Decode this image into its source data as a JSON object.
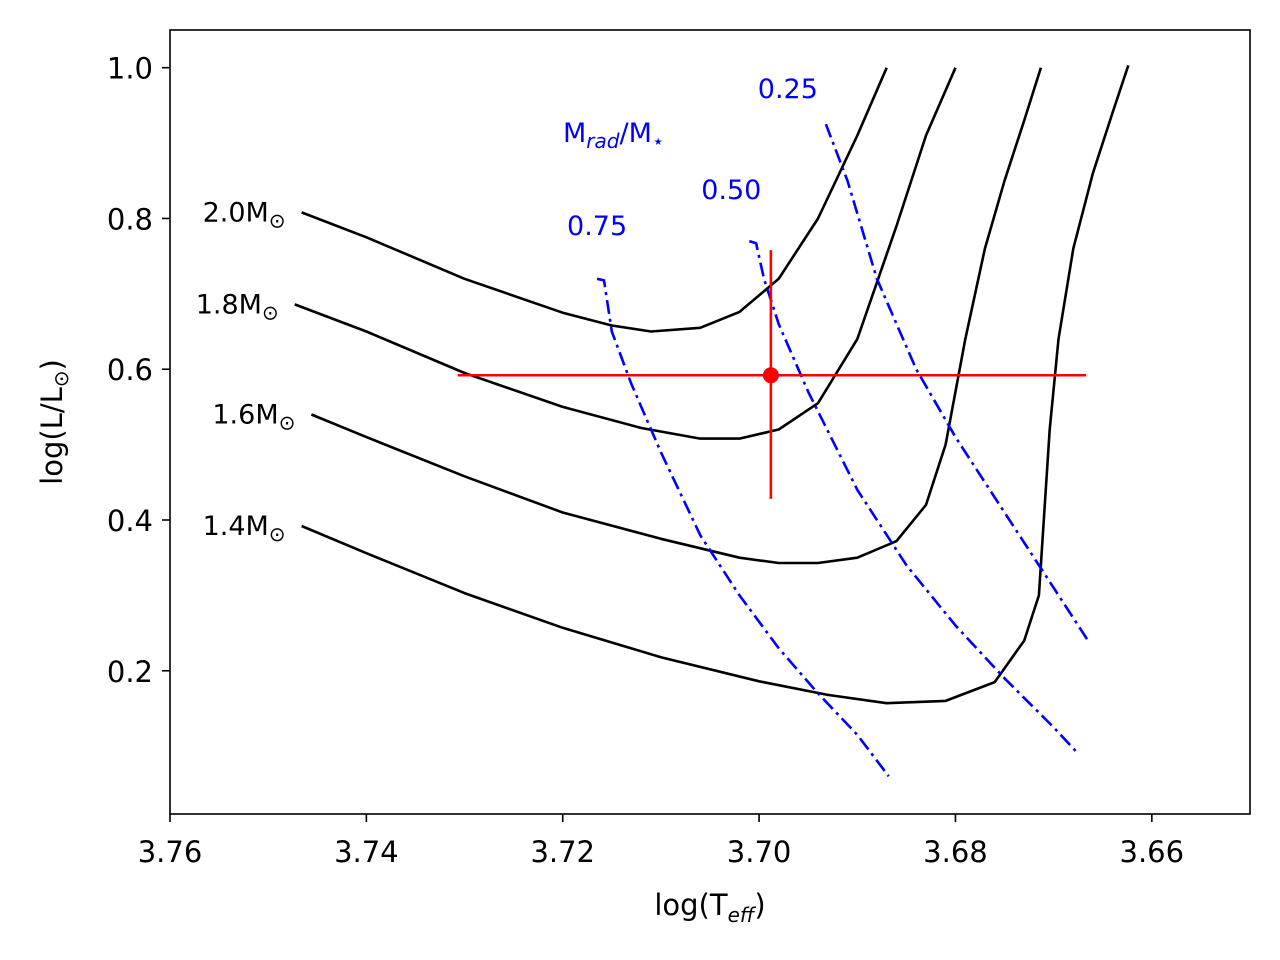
{
  "chart_data": {
    "type": "line",
    "title": "",
    "xlabel": "log(T",
    "xlabel_sub": "eff",
    "xlabel_close": ")",
    "ylabel": "log(L/L",
    "ylabel_sym": "⊙",
    "ylabel_close": ")",
    "xlim": [
      3.76,
      3.65
    ],
    "ylim": [
      0.01,
      1.05
    ],
    "x_ticks": [
      3.76,
      3.74,
      3.72,
      3.7,
      3.68,
      3.66
    ],
    "x_tick_labels": [
      "3.76",
      "3.74",
      "3.72",
      "3.70",
      "3.68",
      "3.66"
    ],
    "y_ticks": [
      0.2,
      0.4,
      0.6,
      0.8,
      1.0
    ],
    "y_tick_labels": [
      "0.2",
      "0.4",
      "0.6",
      "0.8",
      "1.0"
    ],
    "colors": {
      "tracks": "#000000",
      "isofrac": "#0000ff",
      "star": "#ff0000"
    },
    "tracks": [
      {
        "name": "2.0M",
        "label": "2.0M",
        "sun": "⊙",
        "x": [
          3.7466,
          3.74,
          3.73,
          3.72,
          3.715,
          3.711,
          3.706,
          3.702,
          3.698,
          3.694,
          3.69,
          3.687
        ],
        "y": [
          0.808,
          0.775,
          0.72,
          0.675,
          0.658,
          0.65,
          0.655,
          0.676,
          0.72,
          0.8,
          0.91,
          1.0
        ]
      },
      {
        "name": "1.8M",
        "label": "1.8M",
        "sun": "⊙",
        "x": [
          3.7473,
          3.74,
          3.73,
          3.72,
          3.712,
          3.706,
          3.702,
          3.698,
          3.694,
          3.69,
          3.686,
          3.683,
          3.68
        ],
        "y": [
          0.686,
          0.65,
          0.595,
          0.55,
          0.522,
          0.508,
          0.508,
          0.52,
          0.555,
          0.64,
          0.79,
          0.91,
          1.0
        ]
      },
      {
        "name": "1.6M",
        "label": "1.6M",
        "sun": "⊙",
        "x": [
          3.7456,
          3.74,
          3.73,
          3.72,
          3.71,
          3.702,
          3.698,
          3.694,
          3.69,
          3.686,
          3.683,
          3.681,
          3.679,
          3.677,
          3.675,
          3.673,
          3.6713
        ],
        "y": [
          0.54,
          0.51,
          0.458,
          0.41,
          0.375,
          0.35,
          0.343,
          0.343,
          0.35,
          0.372,
          0.42,
          0.5,
          0.64,
          0.76,
          0.85,
          0.93,
          1.0
        ]
      },
      {
        "name": "1.4M",
        "label": "1.4M",
        "sun": "⊙",
        "x": [
          3.7466,
          3.74,
          3.73,
          3.72,
          3.71,
          3.7,
          3.693,
          3.687,
          3.681,
          3.676,
          3.673,
          3.6715,
          3.671,
          3.6704,
          3.6695,
          3.668,
          3.666,
          3.664,
          3.6624
        ],
        "y": [
          0.392,
          0.356,
          0.303,
          0.257,
          0.218,
          0.186,
          0.168,
          0.157,
          0.16,
          0.185,
          0.24,
          0.3,
          0.4,
          0.52,
          0.64,
          0.76,
          0.86,
          0.94,
          1.003
        ]
      }
    ],
    "isofrac": [
      {
        "name": "0.75",
        "label": "0.75",
        "x": [
          3.7165,
          3.7158,
          3.715,
          3.713,
          3.71,
          3.706,
          3.702,
          3.698,
          3.694,
          3.69,
          3.6868
        ],
        "y": [
          0.72,
          0.718,
          0.65,
          0.58,
          0.49,
          0.38,
          0.3,
          0.23,
          0.17,
          0.115,
          0.06
        ]
      },
      {
        "name": "0.50",
        "label": "0.50",
        "x": [
          3.701,
          3.7003,
          3.6995,
          3.698,
          3.695,
          3.69,
          3.685,
          3.68,
          3.675,
          3.67,
          3.6675
        ],
        "y": [
          0.77,
          0.767,
          0.72,
          0.66,
          0.57,
          0.44,
          0.34,
          0.26,
          0.19,
          0.125,
          0.09
        ]
      },
      {
        "name": "0.25",
        "label": "0.25",
        "x": [
          3.6932,
          3.691,
          3.688,
          3.684,
          3.68,
          3.676,
          3.672,
          3.669,
          3.6665
        ],
        "y": [
          0.925,
          0.85,
          0.72,
          0.6,
          0.51,
          0.43,
          0.35,
          0.29,
          0.24
        ]
      }
    ],
    "isofrac_title": "M",
    "isofrac_title_sub": "rad",
    "isofrac_title_mid": "/M",
    "isofrac_title_sub2": "⋆",
    "star": {
      "x": 3.6988,
      "y": 0.592,
      "xerr": [
        3.7307,
        3.6667
      ],
      "yerr": [
        0.428,
        0.758
      ]
    }
  }
}
